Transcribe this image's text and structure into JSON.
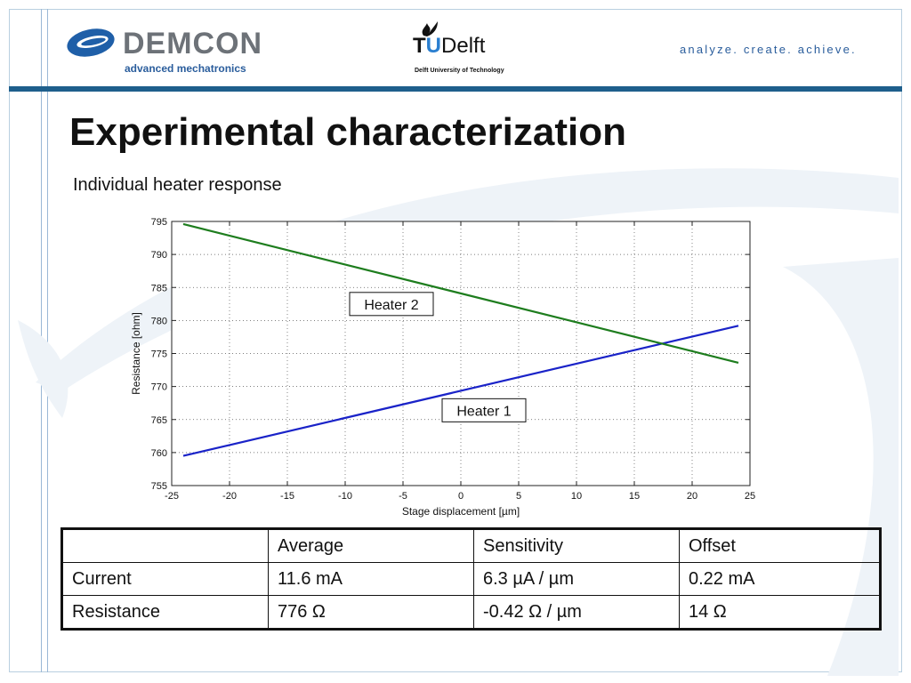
{
  "header": {
    "demcon_name": "DEMCON",
    "demcon_tagline": "advanced mechatronics",
    "tud_name_prefix": "T",
    "tud_name_u": "U",
    "tud_name_suffix": "Delft",
    "tud_subtitle": "Delft University of Technology",
    "slogan": "analyze. create. achieve.",
    "bar_color": "#1e5f8c"
  },
  "slide": {
    "title": "Experimental characterization",
    "subtitle": "Individual heater response"
  },
  "chart_data": {
    "type": "line",
    "xlabel": "Stage displacement [µm]",
    "ylabel": "Resistance [ohm]",
    "xlim": [
      -25,
      25
    ],
    "ylim": [
      755,
      795
    ],
    "xticks": [
      -25,
      -20,
      -15,
      -10,
      -5,
      0,
      5,
      10,
      15,
      20,
      25
    ],
    "yticks": [
      755,
      760,
      765,
      770,
      775,
      780,
      785,
      790,
      795
    ],
    "grid": true,
    "series": [
      {
        "name": "Heater 1",
        "color": "#1a23c8",
        "x": [
          -24,
          24
        ],
        "y": [
          759.5,
          779.2
        ]
      },
      {
        "name": "Heater 2",
        "color": "#1e7d1e",
        "x": [
          -24,
          24
        ],
        "y": [
          794.6,
          773.6
        ]
      }
    ],
    "annotations": [
      {
        "text": "Heater 2",
        "x": -6,
        "y": 782.5
      },
      {
        "text": "Heater 1",
        "x": 2,
        "y": 766.4
      }
    ]
  },
  "table": {
    "header": [
      "",
      "Average",
      "Sensitivity",
      "Offset"
    ],
    "rows": [
      [
        "Current",
        "11.6 mA",
        "6.3 µA / µm",
        "0.22 mA"
      ],
      [
        "Resistance",
        "776 Ω",
        "-0.42 Ω / µm",
        "14 Ω"
      ]
    ]
  }
}
